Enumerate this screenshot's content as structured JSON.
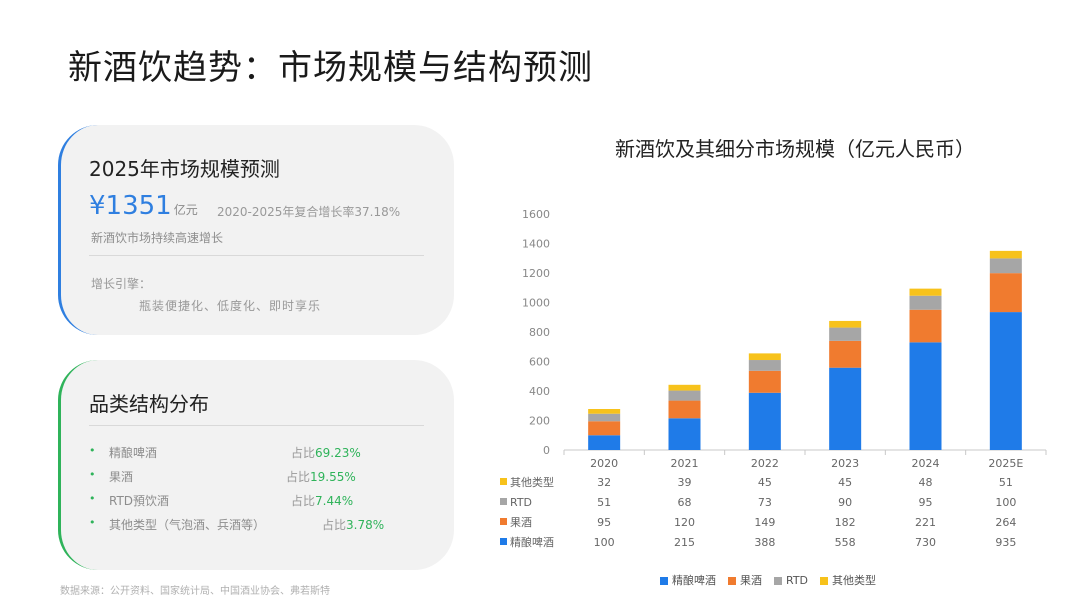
{
  "page": {
    "title": "新酒饮趋势：市场规模与结构预测"
  },
  "forecast_card": {
    "title": "2025年市场规模预测",
    "value": "¥1351",
    "unit": "亿元",
    "cagr": "2020-2025年复合增长率37.18%",
    "subtitle": "新酒饮市场持续高速增长",
    "driver_label": "增长引擎：",
    "driver_text": "瓶装便捷化、低度化、即时享乐"
  },
  "category_card": {
    "title": "品类结构分布",
    "items": [
      {
        "name": "精酿啤酒",
        "share_prefix": "占比",
        "share": "69.23%"
      },
      {
        "name": "果酒",
        "share_prefix": "占比",
        "share": "19.55%"
      },
      {
        "name": "RTD預饮酒",
        "share_prefix": "占比",
        "share": "7.44%"
      },
      {
        "name": "其他类型（气泡酒、兵酒等）",
        "share_prefix": "占比",
        "share": "3.78%"
      }
    ]
  },
  "source": "数据来源：公开资料、国家统计局、中国酒业协会、弗若斯特",
  "chart_data": {
    "type": "bar",
    "stacked": true,
    "title": "新酒饮及其细分市场规模（亿元人民币）",
    "categories": [
      "2020",
      "2021",
      "2022",
      "2023",
      "2024",
      "2025E"
    ],
    "ylim": [
      0,
      1600
    ],
    "yticks": [
      0,
      200,
      400,
      600,
      800,
      1000,
      1200,
      1400,
      1600
    ],
    "grid": false,
    "legend_position": "bottom",
    "series": [
      {
        "name": "精酿啤酒",
        "color": "#1f7be8",
        "values": [
          100,
          215,
          388,
          558,
          730,
          935
        ]
      },
      {
        "name": "果酒",
        "color": "#f07b2f",
        "values": [
          95,
          120,
          149,
          182,
          221,
          264
        ]
      },
      {
        "name": "RTD",
        "color": "#a6a6a6",
        "values": [
          51,
          68,
          73,
          90,
          95,
          100
        ]
      },
      {
        "name": "其他类型",
        "color": "#f7c21b",
        "values": [
          32,
          39,
          45,
          45,
          48,
          51
        ]
      }
    ],
    "table_order": [
      3,
      2,
      1,
      0
    ]
  }
}
